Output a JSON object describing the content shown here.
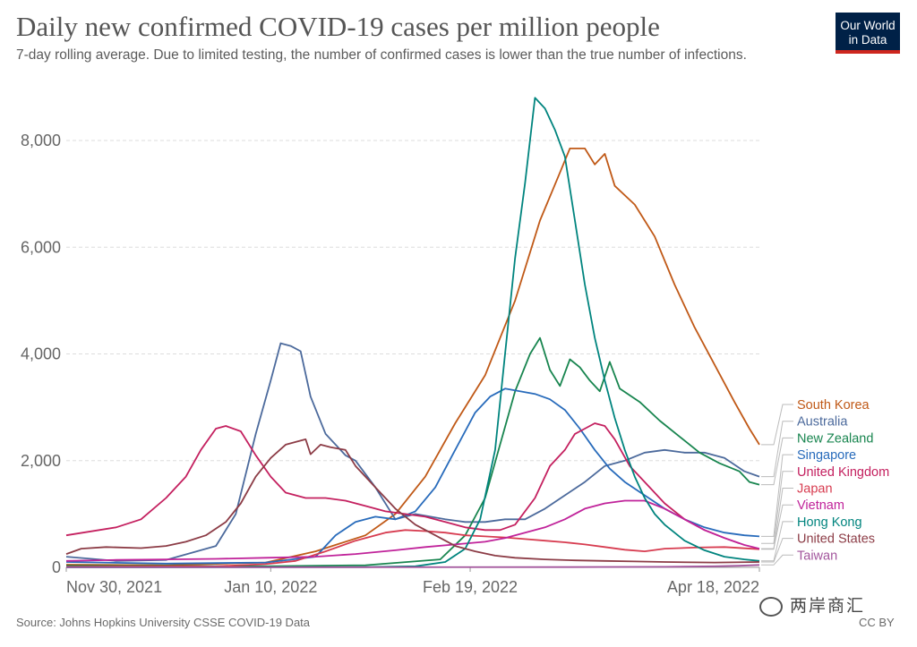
{
  "header": {
    "title": "Daily new confirmed COVID-19 cases per million people",
    "subtitle": "7-day rolling average. Due to limited testing, the number of confirmed cases is lower than the true number of infections.",
    "logo_line1": "Our World",
    "logo_line2": "in Data"
  },
  "footer": {
    "source": "Source: Johns Hopkins University CSSE COVID-19 Data",
    "license": "CC BY",
    "watermark": "两岸商汇"
  },
  "chart_data": {
    "type": "line",
    "title": "Daily new confirmed COVID-19 cases per million people",
    "subtitle": "7-day rolling average. Due to limited testing, the number of confirmed cases is lower than the true number of infections.",
    "x_ticks": [
      "Nov 30, 2021",
      "Jan 10, 2022",
      "Feb 19, 2022",
      "Apr 18, 2022"
    ],
    "y_ticks": [
      0,
      2000,
      4000,
      6000,
      8000
    ],
    "y_tick_labels": [
      "0",
      "2,000",
      "4,000",
      "6,000",
      "8,000"
    ],
    "ylim": [
      0,
      8800
    ],
    "grid": "horizontal dashed",
    "legend_placement": "right",
    "x_unit": "days since Nov 30, 2021",
    "xlim": [
      0,
      139
    ],
    "series": [
      {
        "name": "South Korea",
        "color": "#c05917",
        "points": [
          [
            0,
            50
          ],
          [
            20,
            40
          ],
          [
            40,
            90
          ],
          [
            50,
            300
          ],
          [
            60,
            600
          ],
          [
            66,
            1000
          ],
          [
            72,
            1700
          ],
          [
            78,
            2700
          ],
          [
            84,
            3600
          ],
          [
            90,
            5000
          ],
          [
            95,
            6500
          ],
          [
            99,
            7400
          ],
          [
            101,
            7850
          ],
          [
            104,
            7850
          ],
          [
            106,
            7550
          ],
          [
            108,
            7750
          ],
          [
            110,
            7150
          ],
          [
            114,
            6800
          ],
          [
            118,
            6200
          ],
          [
            122,
            5300
          ],
          [
            126,
            4500
          ],
          [
            130,
            3800
          ],
          [
            134,
            3100
          ],
          [
            137,
            2600
          ],
          [
            139,
            2300
          ]
        ]
      },
      {
        "name": "Australia",
        "color": "#4c6a9c",
        "points": [
          [
            0,
            200
          ],
          [
            10,
            120
          ],
          [
            20,
            140
          ],
          [
            30,
            400
          ],
          [
            34,
            1000
          ],
          [
            38,
            2500
          ],
          [
            41,
            3500
          ],
          [
            43,
            4200
          ],
          [
            45,
            4150
          ],
          [
            47,
            4050
          ],
          [
            49,
            3200
          ],
          [
            52,
            2500
          ],
          [
            56,
            2100
          ],
          [
            58,
            2000
          ],
          [
            62,
            1500
          ],
          [
            66,
            900
          ],
          [
            70,
            1000
          ],
          [
            76,
            900
          ],
          [
            80,
            850
          ],
          [
            84,
            850
          ],
          [
            88,
            900
          ],
          [
            92,
            900
          ],
          [
            96,
            1100
          ],
          [
            100,
            1350
          ],
          [
            104,
            1600
          ],
          [
            108,
            1900
          ],
          [
            112,
            2000
          ],
          [
            116,
            2150
          ],
          [
            120,
            2200
          ],
          [
            124,
            2150
          ],
          [
            128,
            2150
          ],
          [
            132,
            2050
          ],
          [
            136,
            1800
          ],
          [
            139,
            1700
          ]
        ]
      },
      {
        "name": "New Zealand",
        "color": "#18854f",
        "points": [
          [
            0,
            30
          ],
          [
            40,
            20
          ],
          [
            60,
            40
          ],
          [
            75,
            150
          ],
          [
            80,
            600
          ],
          [
            84,
            1300
          ],
          [
            87,
            2300
          ],
          [
            90,
            3300
          ],
          [
            93,
            4000
          ],
          [
            95,
            4300
          ],
          [
            97,
            3700
          ],
          [
            99,
            3400
          ],
          [
            101,
            3900
          ],
          [
            103,
            3750
          ],
          [
            105,
            3500
          ],
          [
            107,
            3300
          ],
          [
            109,
            3850
          ],
          [
            111,
            3350
          ],
          [
            115,
            3100
          ],
          [
            119,
            2750
          ],
          [
            123,
            2450
          ],
          [
            127,
            2150
          ],
          [
            131,
            1950
          ],
          [
            135,
            1800
          ],
          [
            137,
            1600
          ],
          [
            139,
            1550
          ]
        ]
      },
      {
        "name": "Singapore",
        "color": "#286bbb",
        "points": [
          [
            0,
            100
          ],
          [
            20,
            70
          ],
          [
            40,
            90
          ],
          [
            50,
            200
          ],
          [
            54,
            600
          ],
          [
            58,
            850
          ],
          [
            62,
            950
          ],
          [
            66,
            900
          ],
          [
            70,
            1050
          ],
          [
            74,
            1500
          ],
          [
            78,
            2200
          ],
          [
            82,
            2900
          ],
          [
            85,
            3200
          ],
          [
            88,
            3350
          ],
          [
            91,
            3300
          ],
          [
            94,
            3250
          ],
          [
            97,
            3150
          ],
          [
            100,
            2950
          ],
          [
            103,
            2600
          ],
          [
            106,
            2200
          ],
          [
            109,
            1850
          ],
          [
            112,
            1600
          ],
          [
            116,
            1350
          ],
          [
            120,
            1100
          ],
          [
            124,
            900
          ],
          [
            128,
            750
          ],
          [
            132,
            650
          ],
          [
            136,
            600
          ],
          [
            139,
            580
          ]
        ]
      },
      {
        "name": "United Kingdom",
        "color": "#c4205f",
        "points": [
          [
            0,
            600
          ],
          [
            10,
            750
          ],
          [
            15,
            900
          ],
          [
            20,
            1300
          ],
          [
            24,
            1700
          ],
          [
            27,
            2200
          ],
          [
            30,
            2600
          ],
          [
            32,
            2650
          ],
          [
            35,
            2550
          ],
          [
            38,
            2100
          ],
          [
            41,
            1700
          ],
          [
            44,
            1400
          ],
          [
            48,
            1300
          ],
          [
            52,
            1300
          ],
          [
            56,
            1250
          ],
          [
            60,
            1150
          ],
          [
            64,
            1050
          ],
          [
            68,
            1000
          ],
          [
            72,
            950
          ],
          [
            76,
            850
          ],
          [
            80,
            750
          ],
          [
            84,
            700
          ],
          [
            87,
            700
          ],
          [
            90,
            800
          ],
          [
            94,
            1300
          ],
          [
            97,
            1900
          ],
          [
            100,
            2200
          ],
          [
            102,
            2500
          ],
          [
            104,
            2600
          ],
          [
            106,
            2700
          ],
          [
            108,
            2650
          ],
          [
            110,
            2400
          ],
          [
            113,
            1900
          ],
          [
            116,
            1600
          ],
          [
            120,
            1200
          ],
          [
            124,
            900
          ],
          [
            128,
            700
          ],
          [
            132,
            550
          ],
          [
            135,
            450
          ]
        ]
      },
      {
        "name": "Japan",
        "color": "#d73c50",
        "points": [
          [
            0,
            10
          ],
          [
            30,
            20
          ],
          [
            40,
            60
          ],
          [
            46,
            120
          ],
          [
            52,
            300
          ],
          [
            58,
            500
          ],
          [
            64,
            650
          ],
          [
            68,
            700
          ],
          [
            72,
            680
          ],
          [
            76,
            650
          ],
          [
            80,
            600
          ],
          [
            84,
            580
          ],
          [
            88,
            560
          ],
          [
            92,
            530
          ],
          [
            96,
            500
          ],
          [
            100,
            470
          ],
          [
            104,
            430
          ],
          [
            108,
            380
          ],
          [
            112,
            330
          ],
          [
            116,
            300
          ],
          [
            120,
            350
          ],
          [
            126,
            370
          ],
          [
            132,
            380
          ],
          [
            139,
            340
          ]
        ]
      },
      {
        "name": "Vietnam",
        "color": "#c0239a",
        "points": [
          [
            0,
            120
          ],
          [
            10,
            140
          ],
          [
            20,
            150
          ],
          [
            30,
            160
          ],
          [
            40,
            180
          ],
          [
            50,
            200
          ],
          [
            58,
            250
          ],
          [
            66,
            320
          ],
          [
            72,
            380
          ],
          [
            78,
            430
          ],
          [
            84,
            480
          ],
          [
            88,
            550
          ],
          [
            92,
            650
          ],
          [
            96,
            750
          ],
          [
            100,
            900
          ],
          [
            104,
            1100
          ],
          [
            108,
            1200
          ],
          [
            112,
            1250
          ],
          [
            116,
            1250
          ],
          [
            120,
            1100
          ],
          [
            124,
            900
          ],
          [
            128,
            700
          ],
          [
            132,
            550
          ],
          [
            136,
            420
          ],
          [
            139,
            350
          ]
        ]
      },
      {
        "name": "Hong Kong",
        "color": "#00847e",
        "points": [
          [
            0,
            0
          ],
          [
            60,
            5
          ],
          [
            70,
            20
          ],
          [
            76,
            100
          ],
          [
            80,
            350
          ],
          [
            83,
            900
          ],
          [
            86,
            2200
          ],
          [
            88,
            4000
          ],
          [
            90,
            5800
          ],
          [
            92,
            7200
          ],
          [
            94,
            8800
          ],
          [
            96,
            8600
          ],
          [
            98,
            8200
          ],
          [
            100,
            7700
          ],
          [
            102,
            6500
          ],
          [
            104,
            5300
          ],
          [
            106,
            4300
          ],
          [
            108,
            3500
          ],
          [
            110,
            2800
          ],
          [
            112,
            2200
          ],
          [
            114,
            1700
          ],
          [
            116,
            1300
          ],
          [
            118,
            1000
          ],
          [
            120,
            800
          ],
          [
            124,
            500
          ],
          [
            128,
            320
          ],
          [
            132,
            200
          ],
          [
            136,
            150
          ],
          [
            139,
            120
          ]
        ]
      },
      {
        "name": "United States",
        "color": "#8c3c46",
        "points": [
          [
            0,
            250
          ],
          [
            3,
            350
          ],
          [
            8,
            380
          ],
          [
            15,
            360
          ],
          [
            20,
            400
          ],
          [
            24,
            480
          ],
          [
            28,
            600
          ],
          [
            32,
            850
          ],
          [
            35,
            1200
          ],
          [
            38,
            1700
          ],
          [
            41,
            2050
          ],
          [
            44,
            2300
          ],
          [
            46,
            2350
          ],
          [
            48,
            2400
          ],
          [
            49,
            2120
          ],
          [
            51,
            2300
          ],
          [
            53,
            2250
          ],
          [
            56,
            2200
          ],
          [
            58,
            1900
          ],
          [
            62,
            1500
          ],
          [
            66,
            1100
          ],
          [
            70,
            800
          ],
          [
            74,
            600
          ],
          [
            78,
            400
          ],
          [
            82,
            300
          ],
          [
            86,
            220
          ],
          [
            90,
            180
          ],
          [
            96,
            150
          ],
          [
            102,
            130
          ],
          [
            108,
            120
          ],
          [
            114,
            110
          ],
          [
            120,
            100
          ],
          [
            130,
            90
          ],
          [
            139,
            100
          ]
        ]
      },
      {
        "name": "Taiwan",
        "color": "#a2559c",
        "points": [
          [
            0,
            2
          ],
          [
            60,
            3
          ],
          [
            100,
            5
          ],
          [
            120,
            10
          ],
          [
            130,
            20
          ],
          [
            135,
            30
          ],
          [
            139,
            45
          ]
        ]
      }
    ]
  }
}
